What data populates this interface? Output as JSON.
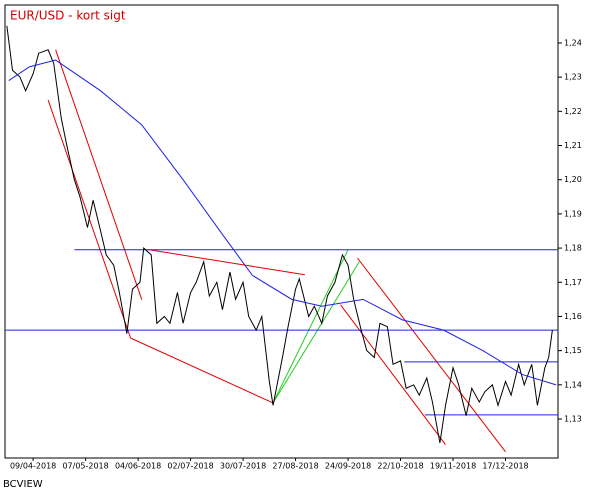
{
  "chart_data": {
    "type": "line",
    "title": "EUR/USD - kort sigt",
    "footer": "BCVIEW",
    "xlim": [
      "2018-03-25",
      "2019-01-14"
    ],
    "xticks": [
      {
        "value": "2018-04-09",
        "label": "09/04-2018"
      },
      {
        "value": "2018-05-07",
        "label": "07/05-2018"
      },
      {
        "value": "2018-06-04",
        "label": "04/06-2018"
      },
      {
        "value": "2018-07-02",
        "label": "02/07-2018"
      },
      {
        "value": "2018-07-30",
        "label": "30/07-2018"
      },
      {
        "value": "2018-08-27",
        "label": "27/08-2018"
      },
      {
        "value": "2018-09-24",
        "label": "24/09-2018"
      },
      {
        "value": "2018-10-22",
        "label": "22/10-2018"
      },
      {
        "value": "2018-11-19",
        "label": "19/11-2018"
      },
      {
        "value": "2018-12-17",
        "label": "17/12-2018"
      }
    ],
    "ylim": [
      1.1186,
      1.2511
    ],
    "yticks": [
      {
        "value": 1.13,
        "label": "1,13"
      },
      {
        "value": 1.14,
        "label": "1,14"
      },
      {
        "value": 1.15,
        "label": "1,15"
      },
      {
        "value": 1.16,
        "label": "1,16"
      },
      {
        "value": 1.17,
        "label": "1,17"
      },
      {
        "value": 1.18,
        "label": "1,18"
      },
      {
        "value": 1.19,
        "label": "1,19"
      },
      {
        "value": 1.2,
        "label": "1,20"
      },
      {
        "value": 1.21,
        "label": "1,21"
      },
      {
        "value": 1.22,
        "label": "1,22"
      },
      {
        "value": 1.23,
        "label": "1,23"
      },
      {
        "value": 1.24,
        "label": "1,24"
      }
    ],
    "grid": false,
    "series": [
      {
        "color": "#000000",
        "x": [
          "2018-03-26",
          "2018-03-29",
          "2018-04-02",
          "2018-04-05",
          "2018-04-09",
          "2018-04-12",
          "2018-04-17",
          "2018-04-20",
          "2018-04-24",
          "2018-04-27",
          "2018-05-01",
          "2018-05-04",
          "2018-05-08",
          "2018-05-11",
          "2018-05-15",
          "2018-05-18",
          "2018-05-22",
          "2018-05-25",
          "2018-05-29",
          "2018-06-01",
          "2018-06-05",
          "2018-06-07",
          "2018-06-11",
          "2018-06-14",
          "2018-06-18",
          "2018-06-21",
          "2018-06-25",
          "2018-06-28",
          "2018-07-02",
          "2018-07-05",
          "2018-07-09",
          "2018-07-12",
          "2018-07-16",
          "2018-07-19",
          "2018-07-23",
          "2018-07-26",
          "2018-07-30",
          "2018-08-02",
          "2018-08-06",
          "2018-08-09",
          "2018-08-13",
          "2018-08-15",
          "2018-08-20",
          "2018-08-23",
          "2018-08-27",
          "2018-08-29",
          "2018-09-03",
          "2018-09-06",
          "2018-09-10",
          "2018-09-13",
          "2018-09-17",
          "2018-09-21",
          "2018-09-24",
          "2018-09-27",
          "2018-10-01",
          "2018-10-04",
          "2018-10-08",
          "2018-10-11",
          "2018-10-15",
          "2018-10-18",
          "2018-10-22",
          "2018-10-25",
          "2018-10-29",
          "2018-11-01",
          "2018-11-05",
          "2018-11-08",
          "2018-11-12",
          "2018-11-15",
          "2018-11-19",
          "2018-11-22",
          "2018-11-26",
          "2018-11-29",
          "2018-12-03",
          "2018-12-06",
          "2018-12-10",
          "2018-12-13",
          "2018-12-17",
          "2018-12-20",
          "2018-12-24",
          "2018-12-27",
          "2018-12-31",
          "2019-01-03",
          "2019-01-07",
          "2019-01-09",
          "2019-01-11"
        ],
        "values": [
          1.245,
          1.232,
          1.23,
          1.226,
          1.231,
          1.237,
          1.238,
          1.234,
          1.218,
          1.21,
          1.2,
          1.195,
          1.186,
          1.194,
          1.185,
          1.178,
          1.175,
          1.167,
          1.155,
          1.168,
          1.17,
          1.18,
          1.178,
          1.158,
          1.16,
          1.158,
          1.167,
          1.158,
          1.167,
          1.17,
          1.176,
          1.166,
          1.17,
          1.162,
          1.173,
          1.165,
          1.17,
          1.16,
          1.156,
          1.16,
          1.141,
          1.134,
          1.148,
          1.157,
          1.168,
          1.171,
          1.16,
          1.163,
          1.158,
          1.166,
          1.17,
          1.178,
          1.175,
          1.165,
          1.156,
          1.15,
          1.148,
          1.158,
          1.157,
          1.146,
          1.147,
          1.139,
          1.14,
          1.137,
          1.142,
          1.135,
          1.123,
          1.134,
          1.145,
          1.14,
          1.131,
          1.139,
          1.135,
          1.138,
          1.14,
          1.134,
          1.141,
          1.137,
          1.146,
          1.14,
          1.146,
          1.134,
          1.145,
          1.148,
          1.156
        ]
      },
      {
        "color": "#2020e0",
        "x": [
          "2018-03-27",
          "2018-04-07",
          "2018-04-21",
          "2018-05-15",
          "2018-06-06",
          "2018-06-28",
          "2018-07-19",
          "2018-08-04",
          "2018-08-25",
          "2018-09-10",
          "2018-10-02",
          "2018-10-23",
          "2018-11-14",
          "2018-12-05",
          "2018-12-26",
          "2019-01-13"
        ],
        "values": [
          1.229,
          1.233,
          1.235,
          1.226,
          1.216,
          1.2,
          1.184,
          1.172,
          1.165,
          1.163,
          1.165,
          1.159,
          1.156,
          1.15,
          1.143,
          1.14
        ]
      }
    ],
    "trendlines": [
      {
        "color": "#e00000",
        "x": [
          "2018-04-17",
          "2018-05-31"
        ],
        "values": [
          1.2233,
          1.1537
        ]
      },
      {
        "color": "#e00000",
        "x": [
          "2018-04-21",
          "2018-06-06"
        ],
        "values": [
          1.238,
          1.1649
        ]
      },
      {
        "color": "#e00000",
        "x": [
          "2018-05-31",
          "2018-08-15"
        ],
        "values": [
          1.1537,
          1.1347
        ]
      },
      {
        "color": "#e00000",
        "x": [
          "2018-06-10",
          "2018-09-01"
        ],
        "values": [
          1.1795,
          1.1722
        ]
      },
      {
        "color": "#e00000",
        "x": [
          "2018-09-29",
          "2018-12-17"
        ],
        "values": [
          1.1771,
          1.1204
        ]
      },
      {
        "color": "#e00000",
        "x": [
          "2018-09-20",
          "2018-11-15"
        ],
        "values": [
          1.1634,
          1.1225
        ]
      },
      {
        "color": "#20d020",
        "x": [
          "2018-08-15",
          "2018-09-24"
        ],
        "values": [
          1.1347,
          1.1795
        ]
      },
      {
        "color": "#20d020",
        "x": [
          "2018-08-15",
          "2018-09-30"
        ],
        "values": [
          1.1347,
          1.176
        ]
      },
      {
        "color": "#2020e0",
        "x": [
          "2018-05-01",
          "2019-01-14"
        ],
        "values": [
          1.1795,
          1.1795
        ]
      },
      {
        "color": "#2020e0",
        "x": [
          "2018-03-25",
          "2019-01-14"
        ],
        "values": [
          1.156,
          1.156
        ]
      },
      {
        "color": "#2020e0",
        "x": [
          "2018-10-24",
          "2019-01-14"
        ],
        "values": [
          1.1467,
          1.1467
        ]
      },
      {
        "color": "#2020e0",
        "x": [
          "2018-11-04",
          "2019-01-14"
        ],
        "values": [
          1.1312,
          1.1312
        ]
      }
    ]
  }
}
